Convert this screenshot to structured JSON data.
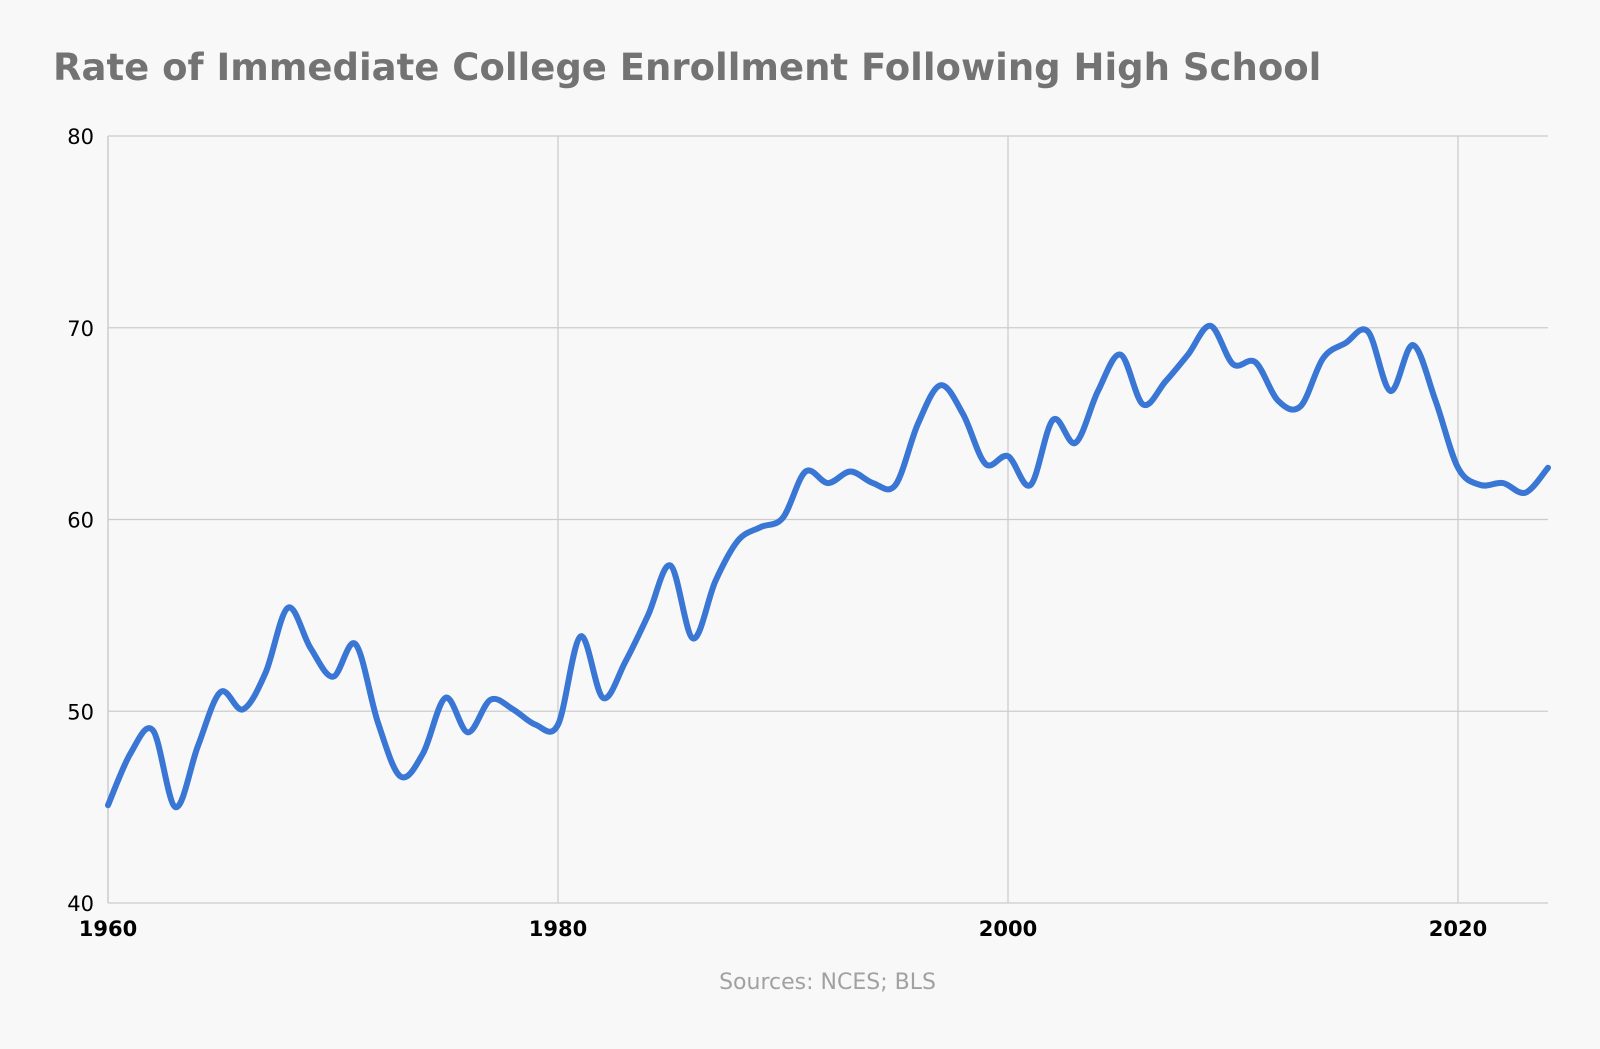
{
  "title": "Rate of Immediate College Enrollment Following High School",
  "source": "Sources: NCES; BLS",
  "colors": {
    "line": "#3a76d4",
    "grid": "#cccccc",
    "title": "#737373",
    "source": "#a1a1a1",
    "background": "#f8f8f8"
  },
  "chart_data": {
    "type": "line",
    "title": "Rate of Immediate College Enrollment Following High School",
    "xlabel": "",
    "ylabel": "",
    "xlim": [
      1960,
      2024
    ],
    "ylim": [
      40,
      80
    ],
    "x_ticks": [
      1960,
      1980,
      2000,
      2020
    ],
    "y_ticks": [
      40,
      50,
      60,
      70,
      80
    ],
    "grid": true,
    "legend": "none",
    "series": [
      {
        "x": [
          1960,
          1961,
          1962,
          1963,
          1964,
          1965,
          1966,
          1967,
          1968,
          1969,
          1970,
          1971,
          1972,
          1973,
          1974,
          1975,
          1976,
          1977,
          1978,
          1979,
          1980,
          1981,
          1982,
          1983,
          1984,
          1985,
          1986,
          1987,
          1988,
          1989,
          1990,
          1991,
          1992,
          1993,
          1994,
          1995,
          1996,
          1997,
          1998,
          1999,
          2000,
          2001,
          2002,
          2003,
          2004,
          2005,
          2006,
          2007,
          2008,
          2009,
          2010,
          2011,
          2012,
          2013,
          2014,
          2015,
          2016,
          2017,
          2018,
          2019,
          2020,
          2021,
          2022,
          2023,
          2024
        ],
        "values": [
          45.1,
          47.8,
          49.0,
          45.0,
          48.2,
          51.0,
          50.1,
          52.0,
          55.4,
          53.3,
          51.8,
          53.5,
          49.4,
          46.6,
          47.8,
          50.7,
          48.9,
          50.6,
          50.1,
          49.3,
          49.3,
          53.9,
          50.7,
          52.6,
          55.0,
          57.6,
          53.8,
          56.8,
          58.9,
          59.6,
          60.1,
          62.5,
          61.9,
          62.5,
          61.9,
          61.8,
          65.0,
          67.0,
          65.5,
          62.9,
          63.3,
          61.8,
          65.2,
          64.0,
          66.7,
          68.6,
          66.0,
          67.2,
          68.6,
          70.1,
          68.1,
          68.2,
          66.2,
          65.9,
          68.4,
          69.2,
          69.8,
          66.7,
          69.1,
          66.2,
          62.7,
          61.8,
          61.9,
          61.4,
          62.7
        ]
      }
    ]
  }
}
